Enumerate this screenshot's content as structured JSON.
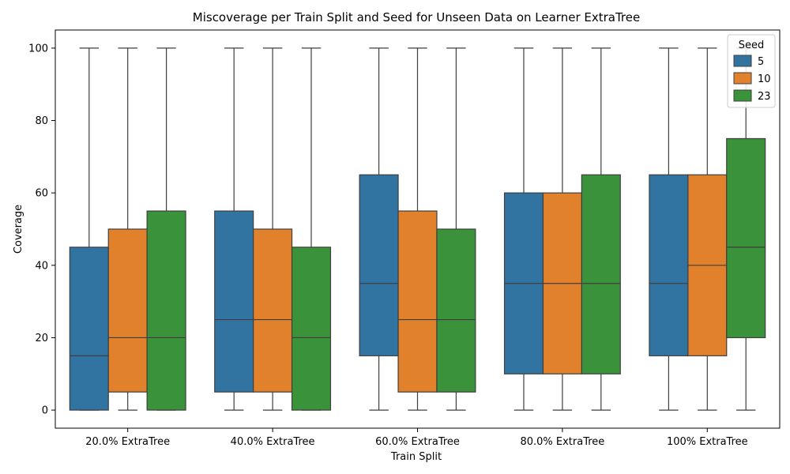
{
  "chart_data": {
    "type": "boxplot",
    "title": "Miscoverage per Train Split and Seed for Unseen Data on Learner ExtraTree",
    "xlabel": "Train Split",
    "ylabel": "Coverage",
    "ylim": [
      -5,
      105
    ],
    "yticks": [
      0,
      20,
      40,
      60,
      80,
      100
    ],
    "categories": [
      "20.0% ExtraTree",
      "40.0% ExtraTree",
      "60.0% ExtraTree",
      "80.0% ExtraTree",
      "100% ExtraTree"
    ],
    "legend": {
      "title": "Seed",
      "position": "top-right"
    },
    "grid": false,
    "series": [
      {
        "name": "5",
        "color": "#3274a1",
        "boxes": [
          {
            "min": 0,
            "q1": 0,
            "median": 15,
            "q3": 45,
            "max": 100
          },
          {
            "min": 0,
            "q1": 5,
            "median": 25,
            "q3": 55,
            "max": 100
          },
          {
            "min": 0,
            "q1": 15,
            "median": 35,
            "q3": 65,
            "max": 100
          },
          {
            "min": 0,
            "q1": 10,
            "median": 35,
            "q3": 60,
            "max": 100
          },
          {
            "min": 0,
            "q1": 15,
            "median": 35,
            "q3": 65,
            "max": 100
          }
        ]
      },
      {
        "name": "10",
        "color": "#e1812c",
        "boxes": [
          {
            "min": 0,
            "q1": 5,
            "median": 20,
            "q3": 50,
            "max": 100
          },
          {
            "min": 0,
            "q1": 5,
            "median": 25,
            "q3": 50,
            "max": 100
          },
          {
            "min": 0,
            "q1": 5,
            "median": 25,
            "q3": 55,
            "max": 100
          },
          {
            "min": 0,
            "q1": 10,
            "median": 35,
            "q3": 60,
            "max": 100
          },
          {
            "min": 0,
            "q1": 15,
            "median": 40,
            "q3": 65,
            "max": 100
          }
        ]
      },
      {
        "name": "23",
        "color": "#3a923a",
        "boxes": [
          {
            "min": 0,
            "q1": 0,
            "median": 20,
            "q3": 55,
            "max": 100
          },
          {
            "min": 0,
            "q1": 0,
            "median": 20,
            "q3": 45,
            "max": 100
          },
          {
            "min": 0,
            "q1": 5,
            "median": 25,
            "q3": 50,
            "max": 100
          },
          {
            "min": 0,
            "q1": 10,
            "median": 35,
            "q3": 65,
            "max": 100
          },
          {
            "min": 0,
            "q1": 20,
            "median": 45,
            "q3": 75,
            "max": 100
          }
        ]
      }
    ]
  }
}
